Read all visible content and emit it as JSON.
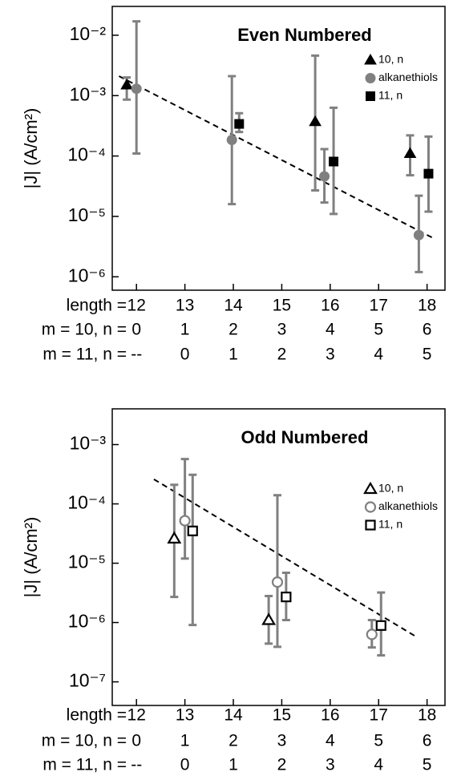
{
  "chart_data": [
    {
      "type": "scatter",
      "title": "Even Numbered",
      "ylabel": "|J| (A/cm²)",
      "yscale": "log",
      "ylim": [
        6e-07,
        0.03
      ],
      "yticks": [
        {
          "value": 0.01,
          "label": "10⁻²"
        },
        {
          "value": 0.001,
          "label": "10⁻³"
        },
        {
          "value": 0.0001,
          "label": "10⁻⁴"
        },
        {
          "value": 1e-05,
          "label": "10⁻⁵"
        },
        {
          "value": 1e-06,
          "label": "10⁻⁶"
        }
      ],
      "xlim": [
        11.5,
        18.37
      ],
      "xticks": [
        12,
        13,
        14,
        15,
        16,
        17,
        18
      ],
      "xlabel": "length =",
      "tick_rows": [
        {
          "label": "m = 10, n =",
          "values": [
            "0",
            "1",
            "2",
            "3",
            "4",
            "5",
            "6"
          ]
        },
        {
          "label": "m = 11, n =",
          "values": [
            "--",
            "0",
            "1",
            "2",
            "3",
            "4",
            "5"
          ]
        }
      ],
      "legend": "upper right",
      "error_color": "#808080",
      "series": [
        {
          "name": "10, n",
          "color": "#000000",
          "marker": "triangle",
          "filled": true,
          "x": [
            11.8,
            15.69,
            17.65
          ],
          "values": [
            0.0015,
            0.00037,
            0.00011
          ],
          "err_low": [
            0.00086,
            2.7e-05,
            4.8e-05
          ],
          "err_high": [
            0.002,
            0.0046,
            0.00022
          ]
        },
        {
          "name": "alkanethiols",
          "color": "#808080",
          "marker": "circle",
          "filled": true,
          "x": [
            12,
            13.97,
            15.88,
            17.83
          ],
          "values": [
            0.0013,
            0.000185,
            4.6e-05,
            4.9e-06
          ],
          "err_low": [
            0.00011,
            1.6e-05,
            1.7e-05,
            1.2e-06
          ],
          "err_high": [
            0.017,
            0.0021,
            0.00013,
            2.2e-05
          ]
        },
        {
          "name": "11, n",
          "color": "#000000",
          "marker": "square",
          "filled": true,
          "x": [
            14.12,
            16.07,
            18.03
          ],
          "values": [
            0.00034,
            8.1e-05,
            5.1e-05
          ],
          "err_low": [
            0.00025,
            1.1e-05,
            1.2e-05
          ],
          "err_high": [
            0.00051,
            0.00063,
            0.00021
          ]
        }
      ],
      "fit": {
        "color": "#000000",
        "x": [
          11.64,
          18.12
        ],
        "values": [
          0.0021,
          4.4e-06
        ]
      }
    },
    {
      "type": "scatter",
      "title": "Odd Numbered",
      "ylabel": "|J| (A/cm²)",
      "yscale": "log",
      "ylim": [
        4e-08,
        0.004
      ],
      "yticks": [
        {
          "value": 0.001,
          "label": "10⁻³"
        },
        {
          "value": 0.0001,
          "label": "10⁻⁴"
        },
        {
          "value": 1e-05,
          "label": "10⁻⁵"
        },
        {
          "value": 1e-06,
          "label": "10⁻⁶"
        },
        {
          "value": 1e-07,
          "label": "10⁻⁷"
        }
      ],
      "xlim": [
        11.5,
        18.37
      ],
      "xticks": [
        12,
        13,
        14,
        15,
        16,
        17,
        18
      ],
      "xlabel": "length =",
      "tick_rows": [
        {
          "label": "m = 10, n =",
          "values": [
            "0",
            "1",
            "2",
            "3",
            "4",
            "5",
            "6"
          ]
        },
        {
          "label": "m = 11, n =",
          "values": [
            "--",
            "0",
            "1",
            "2",
            "3",
            "4",
            "5"
          ]
        }
      ],
      "legend": "center right",
      "error_color": "#808080",
      "series": [
        {
          "name": "10, n",
          "color": "#000000",
          "marker": "triangle",
          "filled": false,
          "x": [
            12.78,
            14.73
          ],
          "values": [
            2.6e-05,
            1.1e-06
          ],
          "err_low": [
            2.7e-06,
            4.4e-07
          ],
          "err_high": [
            0.00021,
            2.8e-06
          ]
        },
        {
          "name": "alkanethiols",
          "color": "#808080",
          "marker": "circle",
          "filled": false,
          "x": [
            13,
            14.91,
            16.86
          ],
          "values": [
            5.2e-05,
            4.8e-06,
            6.3e-07
          ],
          "err_low": [
            1.2e-05,
            3.9e-07,
            3.8e-07
          ],
          "err_high": [
            0.00057,
            0.00014,
            1.1e-06
          ]
        },
        {
          "name": "11, n",
          "color": "#000000",
          "marker": "square",
          "filled": false,
          "x": [
            13.16,
            15.09,
            17.05
          ],
          "values": [
            3.5e-05,
            2.7e-06,
            8.9e-07
          ],
          "err_low": [
            9.1e-07,
            1.1e-06,
            2.8e-07
          ],
          "err_high": [
            0.00031,
            6.9e-06,
            3.2e-06
          ]
        }
      ],
      "fit": {
        "color": "#000000",
        "x": [
          12.36,
          17.74
        ],
        "values": [
          0.00026,
          6e-07
        ]
      }
    }
  ]
}
